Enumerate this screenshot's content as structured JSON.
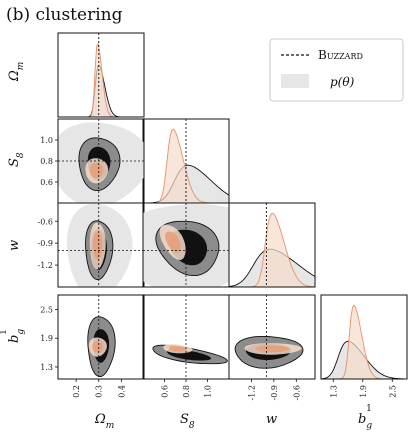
{
  "figure": {
    "title": "(b) clustering"
  },
  "legend": {
    "fiducial": "Buzzard",
    "prior": "p(θ)"
  },
  "colors": {
    "posterior_inner": "#111111",
    "posterior_outer": "#8c8c8c",
    "prior_fill": "#e6e6e6",
    "orange_inner": "#e6a079",
    "orange_outer": "#f6dccb",
    "orange_line": "#e5916a",
    "dashed": "#111111"
  },
  "chart_data": {
    "type": "corner",
    "title": "(b) clustering",
    "parameters": [
      {
        "key": "Om",
        "label": "Ωm",
        "sub": "m",
        "sym": "Ω",
        "fiducial": 0.3,
        "range": [
          0.12,
          0.5
        ],
        "ticks": [
          "0.2",
          "0.3",
          "0.4"
        ],
        "tick_values": [
          0.2,
          0.3,
          0.4
        ]
      },
      {
        "key": "S8",
        "label": "S8",
        "sub": "8",
        "sym": "S",
        "fiducial": 0.8,
        "range": [
          0.4,
          1.2
        ],
        "ticks": [
          "0.6",
          "0.8",
          "1.0"
        ],
        "tick_values": [
          0.6,
          0.8,
          1.0
        ]
      },
      {
        "key": "w",
        "label": "w",
        "sub": "",
        "sym": "w",
        "fiducial": -1.0,
        "range": [
          -1.5,
          -0.35
        ],
        "ticks": [
          "-1.2",
          "-0.9",
          "-0.6"
        ],
        "tick_values": [
          -1.2,
          -0.9,
          -0.6
        ]
      },
      {
        "key": "b1g",
        "label": "b1g",
        "sub": "g",
        "sup": "1",
        "sym": "b",
        "fiducial": null,
        "range": [
          1.05,
          2.8
        ],
        "ticks": [
          "1.3",
          "1.9",
          "2.5"
        ],
        "tick_values": [
          1.3,
          1.9,
          2.5
        ]
      }
    ],
    "row_ticks": {
      "S8": [
        "1.0",
        "0.8",
        "0.6"
      ],
      "w": [
        "-0.6",
        "-0.9",
        "-1.2"
      ],
      "b1g": [
        "2.5",
        "1.9",
        "1.3"
      ]
    },
    "marginals": {
      "Om": {
        "black_peak": 0.3,
        "black_sigma": 0.02,
        "orange_peak": 0.295,
        "orange_sigma": 0.015
      },
      "S8": {
        "black_peak": 0.82,
        "black_sigma": 0.16,
        "orange_peak": 0.68,
        "orange_sigma": 0.07
      },
      "w": {
        "black_peak": -0.95,
        "black_sigma": 0.28,
        "orange_peak": -0.92,
        "orange_sigma": 0.12
      },
      "b1g": {
        "black_peak": 1.6,
        "black_sigma": 0.25,
        "orange_peak": 1.72,
        "orange_sigma": 0.12
      }
    }
  }
}
